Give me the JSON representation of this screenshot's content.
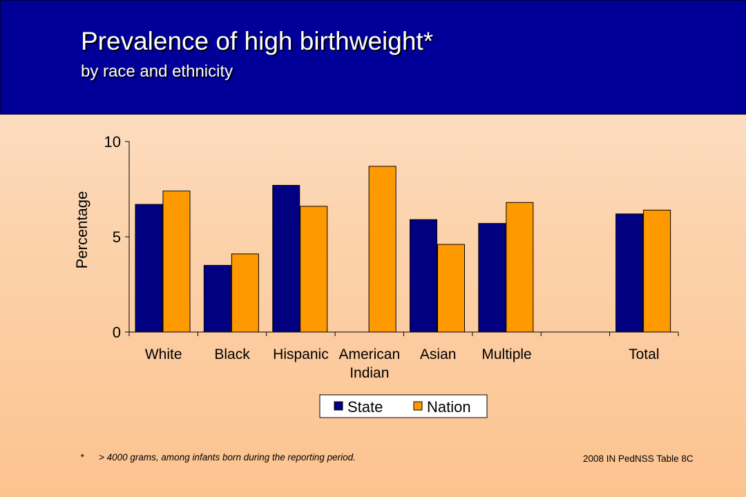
{
  "header": {
    "title": "Prevalence of high birthweight*",
    "subtitle": "by race and ethnicity"
  },
  "chart_data": {
    "type": "bar",
    "categories": [
      [
        "White"
      ],
      [
        "Black"
      ],
      [
        "Hispanic"
      ],
      [
        "American",
        "Indian"
      ],
      [
        "Asian"
      ],
      [
        "Multiple"
      ],
      [
        ""
      ],
      [
        "Total"
      ]
    ],
    "series": [
      {
        "name": "State",
        "color": "#000080",
        "values": [
          6.7,
          3.5,
          7.7,
          null,
          5.9,
          5.7,
          null,
          6.2
        ]
      },
      {
        "name": "Nation",
        "color": "#ff9900",
        "values": [
          7.4,
          4.1,
          6.6,
          8.7,
          4.6,
          6.8,
          null,
          6.4
        ]
      }
    ],
    "ylabel": "Percentage",
    "ylim": [
      0,
      10
    ],
    "yticks": [
      0,
      5,
      10
    ],
    "grid": false,
    "legend": "bottom-center"
  },
  "footnote": {
    "marker": "*",
    "text": "> 4000 grams, among infants born during the reporting period."
  },
  "source": "2008 IN PedNSS Table 8C"
}
